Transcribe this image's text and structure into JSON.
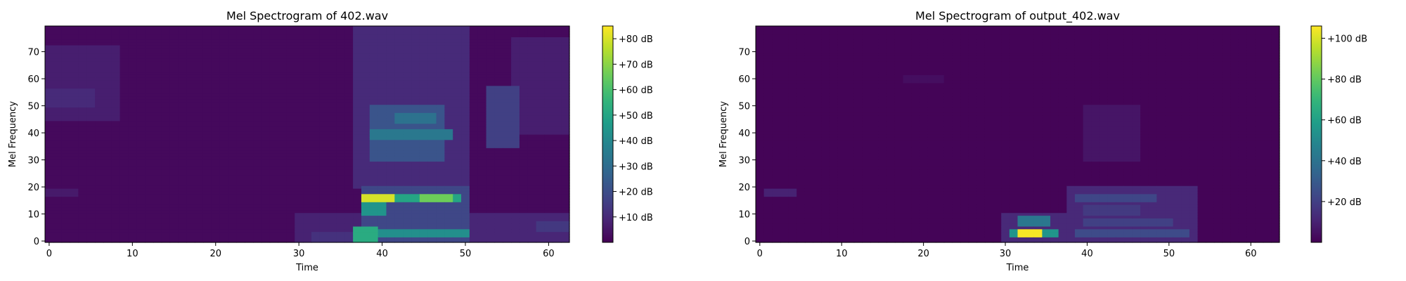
{
  "chart_data": [
    {
      "type": "heatmap",
      "title": "Mel Spectrogram of 402.wav",
      "xlabel": "Time",
      "ylabel": "Mel Frequency",
      "xlim": [
        -0.5,
        62.5
      ],
      "ylim": [
        -0.5,
        79.5
      ],
      "x_ticks": [
        0,
        10,
        20,
        30,
        40,
        50,
        60
      ],
      "y_ticks": [
        0,
        10,
        20,
        30,
        40,
        50,
        60,
        70
      ],
      "n_frames": 63,
      "n_mels": 80,
      "colormap": "viridis",
      "colorbar": {
        "range_db": [
          0,
          85
        ],
        "ticks": [
          10,
          20,
          30,
          40,
          50,
          60,
          70,
          80
        ],
        "tick_labels": [
          "+10 dB",
          "+20 dB",
          "+30 dB",
          "+40 dB",
          "+50 dB",
          "+60 dB",
          "+70 dB",
          "+80 dB"
        ]
      },
      "background_db": 2,
      "regions": [
        {
          "t": [
            0,
            8
          ],
          "f": [
            45,
            72
          ],
          "db": 7
        },
        {
          "t": [
            0,
            5
          ],
          "f": [
            50,
            56
          ],
          "db": 10
        },
        {
          "t": [
            0,
            3
          ],
          "f": [
            17,
            19
          ],
          "db": 6
        },
        {
          "t": [
            30,
            37
          ],
          "f": [
            0,
            10
          ],
          "db": 8
        },
        {
          "t": [
            32,
            37
          ],
          "f": [
            0,
            3
          ],
          "db": 12
        },
        {
          "t": [
            37,
            50
          ],
          "f": [
            20,
            79
          ],
          "db": 10
        },
        {
          "t": [
            39,
            47
          ],
          "f": [
            30,
            50
          ],
          "db": 22
        },
        {
          "t": [
            39,
            48
          ],
          "f": [
            38,
            41
          ],
          "db": 34
        },
        {
          "t": [
            42,
            46
          ],
          "f": [
            44,
            47
          ],
          "db": 32
        },
        {
          "t": [
            38,
            50
          ],
          "f": [
            0,
            20
          ],
          "db": 18
        },
        {
          "t": [
            38,
            49
          ],
          "f": [
            15,
            17
          ],
          "db": 50
        },
        {
          "t": [
            38,
            41
          ],
          "f": [
            15,
            17
          ],
          "db": 80
        },
        {
          "t": [
            45,
            48
          ],
          "f": [
            15,
            17
          ],
          "db": 66
        },
        {
          "t": [
            38,
            40
          ],
          "f": [
            10,
            15
          ],
          "db": 44
        },
        {
          "t": [
            38,
            50
          ],
          "f": [
            2,
            4
          ],
          "db": 42
        },
        {
          "t": [
            37,
            39
          ],
          "f": [
            0,
            5
          ],
          "db": 52
        },
        {
          "t": [
            50,
            62
          ],
          "f": [
            0,
            10
          ],
          "db": 9
        },
        {
          "t": [
            53,
            56
          ],
          "f": [
            35,
            57
          ],
          "db": 16
        },
        {
          "t": [
            56,
            62
          ],
          "f": [
            40,
            75
          ],
          "db": 7
        },
        {
          "t": [
            59,
            62
          ],
          "f": [
            4,
            7
          ],
          "db": 14
        }
      ]
    },
    {
      "type": "heatmap",
      "title": "Mel Spectrogram of output_402.wav",
      "xlabel": "Time",
      "ylabel": "Mel Frequency",
      "xlim": [
        -0.5,
        63.5
      ],
      "ylim": [
        -0.5,
        79.5
      ],
      "x_ticks": [
        0,
        10,
        20,
        30,
        40,
        50,
        60
      ],
      "y_ticks": [
        0,
        10,
        20,
        30,
        40,
        50,
        60,
        70
      ],
      "n_frames": 64,
      "n_mels": 80,
      "colormap": "viridis",
      "colorbar": {
        "range_db": [
          0,
          106
        ],
        "ticks": [
          20,
          40,
          60,
          80,
          100
        ],
        "tick_labels": [
          "+20 dB",
          "+40 dB",
          "+60 dB",
          "+80 dB",
          "+100 dB"
        ]
      },
      "background_db": 1,
      "regions": [
        {
          "t": [
            1,
            4
          ],
          "f": [
            17,
            19
          ],
          "db": 10
        },
        {
          "t": [
            18,
            22
          ],
          "f": [
            59,
            61
          ],
          "db": 4
        },
        {
          "t": [
            30,
            38
          ],
          "f": [
            0,
            10
          ],
          "db": 12
        },
        {
          "t": [
            31,
            36
          ],
          "f": [
            2,
            4
          ],
          "db": 55
        },
        {
          "t": [
            32,
            34
          ],
          "f": [
            2,
            4
          ],
          "db": 105
        },
        {
          "t": [
            32,
            35
          ],
          "f": [
            6,
            9
          ],
          "db": 42
        },
        {
          "t": [
            38,
            53
          ],
          "f": [
            0,
            20
          ],
          "db": 12
        },
        {
          "t": [
            39,
            48
          ],
          "f": [
            15,
            17
          ],
          "db": 22
        },
        {
          "t": [
            39,
            52
          ],
          "f": [
            2,
            4
          ],
          "db": 24
        },
        {
          "t": [
            40,
            50
          ],
          "f": [
            6,
            8
          ],
          "db": 20
        },
        {
          "t": [
            40,
            46
          ],
          "f": [
            10,
            13
          ],
          "db": 18
        },
        {
          "t": [
            40,
            46
          ],
          "f": [
            30,
            50
          ],
          "db": 6
        }
      ]
    }
  ]
}
